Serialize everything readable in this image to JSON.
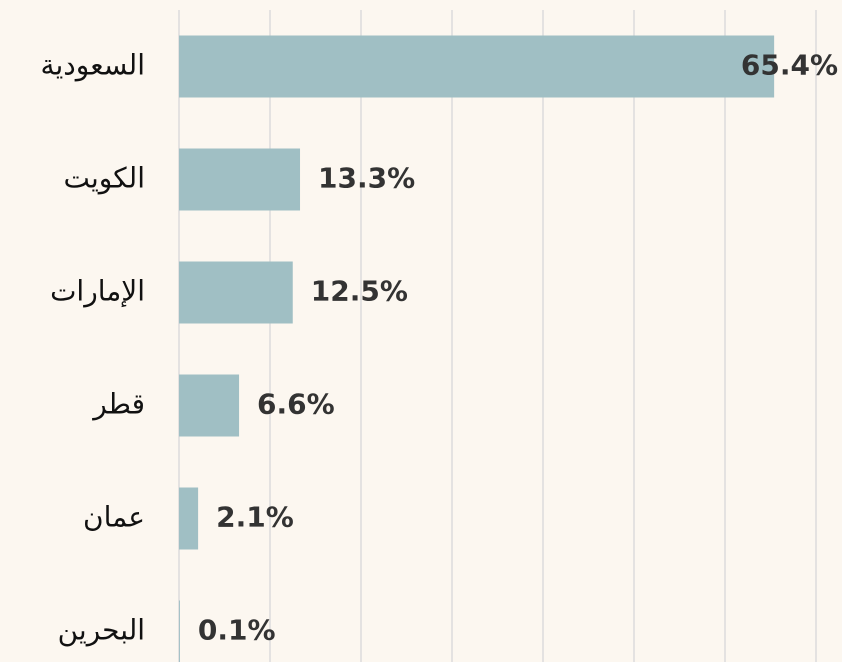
{
  "chart_data": {
    "type": "bar",
    "orientation": "horizontal",
    "categories": [
      "السعودية",
      "الكويت",
      "الإمارات",
      "قطر",
      "عمان",
      "البحرين"
    ],
    "values": [
      65.4,
      13.3,
      12.5,
      6.6,
      2.1,
      0.1
    ],
    "value_labels": [
      "65.4%",
      "13.3%",
      "12.5%",
      "6.6%",
      "2.1%",
      "0.1%"
    ],
    "color": "#a0bfc4",
    "xlim": [
      0,
      70
    ],
    "xticks": [
      0,
      10,
      20,
      30,
      40,
      50,
      60,
      70
    ],
    "grid": true
  }
}
